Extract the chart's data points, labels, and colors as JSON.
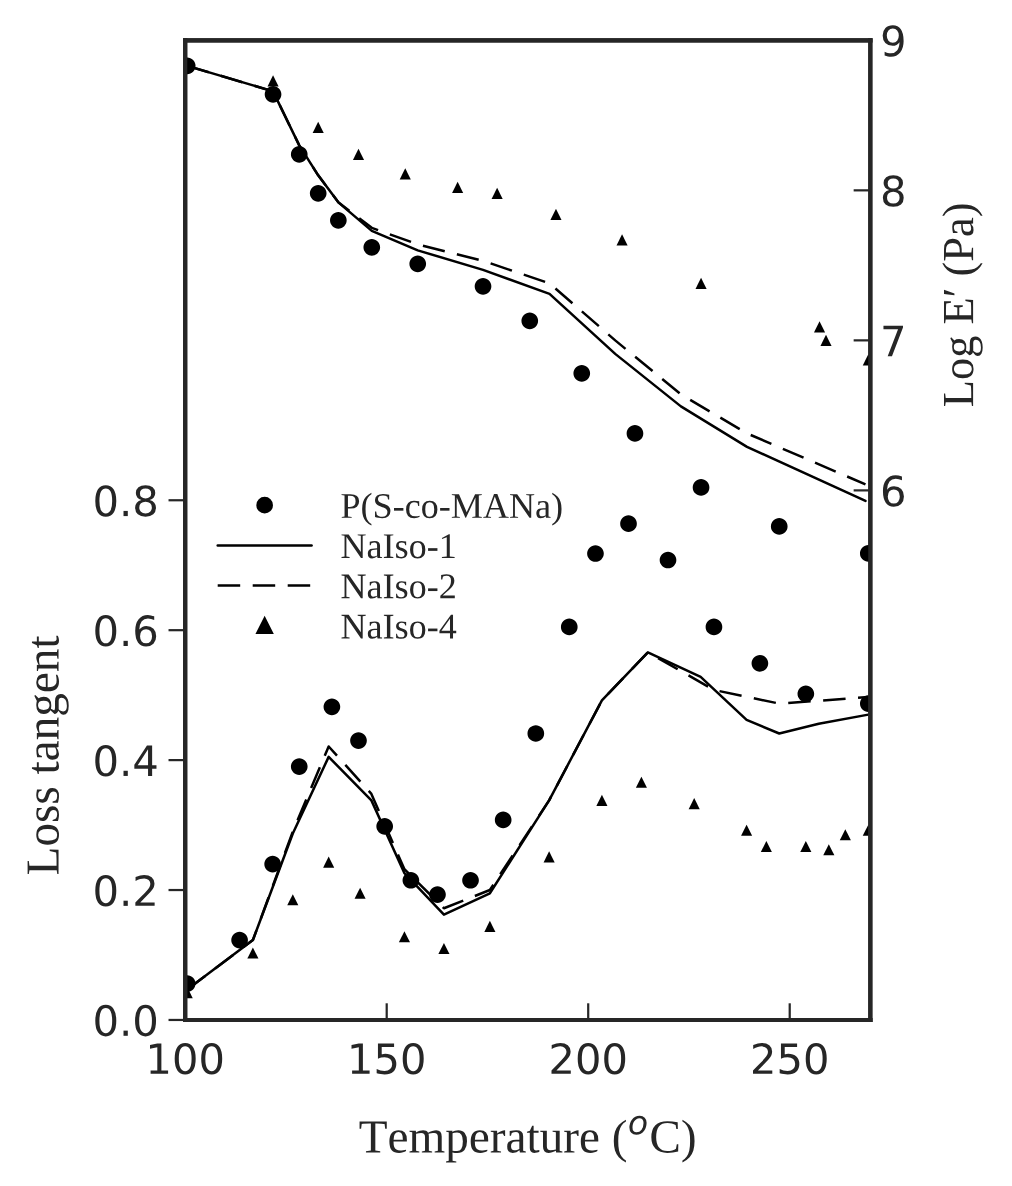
{
  "chart_data": {
    "type": "line",
    "xlabel": "Temperature ($^{o}$C)",
    "ylabel": "Loss tangent",
    "y2label": "Log E′ (Pa)",
    "xlim": [
      100,
      270
    ],
    "xticks": [
      100,
      150,
      200,
      250
    ],
    "ylim": [
      0,
      1.508
    ],
    "yticks": [
      {
        "value": 0,
        "label": "0.0"
      },
      {
        "value": 0.2,
        "label": "0.2"
      },
      {
        "value": 0.4,
        "label": "0.4"
      },
      {
        "value": 0.6,
        "label": "0.6"
      },
      {
        "value": 0.8,
        "label": "0.8"
      }
    ],
    "y2lim": [
      2.47,
      9
    ],
    "y2ticks": [
      6,
      7,
      8,
      9
    ],
    "grid": false,
    "legend": "center left",
    "series": [
      {
        "name": "P(S-co-MANa)",
        "type": "scatter",
        "marker": "circle",
        "color": "#000000",
        "x": [
          100.5,
          113.5,
          121.7,
          128.3,
          136.4,
          143,
          149.5,
          156,
          162.6,
          170.8,
          178.9,
          187,
          195.3,
          201.8,
          210,
          219.8,
          231.2,
          242.6,
          254,
          269.5
        ],
        "values": [
          0.056,
          0.123,
          0.24,
          0.39,
          0.482,
          0.43,
          0.298,
          0.215,
          0.193,
          0.215,
          0.308,
          0.441,
          0.605,
          0.718,
          0.764,
          0.708,
          0.605,
          0.549,
          0.502,
          0.487
        ]
      },
      {
        "name": "NaIso-1",
        "line_style": "solid",
        "marker": "none",
        "color": "#000000",
        "x": [
          100.5,
          116.8,
          126.7,
          135.6,
          146.2,
          154.4,
          164.2,
          175.6,
          190.3,
          203.4,
          214.8,
          227.9,
          239.3,
          247.4,
          257.2,
          269.5
        ],
        "values": [
          0.047,
          0.123,
          0.287,
          0.405,
          0.338,
          0.226,
          0.162,
          0.195,
          0.338,
          0.492,
          0.566,
          0.528,
          0.462,
          0.441,
          0.456,
          0.47
        ]
      },
      {
        "name": "NaIso-2",
        "line_style": "dashed",
        "marker": "none",
        "color": "#000000",
        "x": [
          100.5,
          116.8,
          126.7,
          135.6,
          146.2,
          154.4,
          164.2,
          175.6,
          190.3,
          203.4,
          214.8,
          231.2,
          247.4,
          269.5
        ],
        "values": [
          0.047,
          0.123,
          0.29,
          0.421,
          0.348,
          0.232,
          0.172,
          0.2,
          0.338,
          0.492,
          0.566,
          0.508,
          0.487,
          0.497
        ]
      },
      {
        "name": "NaIso-4",
        "type": "scatter",
        "marker": "triangle",
        "color": "#000000",
        "x": [
          100.5,
          116.8,
          126.7,
          135.6,
          143.4,
          154.4,
          164.2,
          175.6,
          190.3,
          203.4,
          213.2,
          226.3,
          239.3,
          244.2,
          254,
          259.7,
          263.8,
          269.5
        ],
        "values": [
          0.042,
          0.103,
          0.185,
          0.243,
          0.195,
          0.128,
          0.11,
          0.144,
          0.251,
          0.338,
          0.366,
          0.333,
          0.292,
          0.267,
          0.267,
          0.262,
          0.285,
          0.292
        ]
      },
      {
        "type": "scatter",
        "marker": "circle",
        "axis": "y2",
        "color": "#000000",
        "x": [
          100.5,
          121.8,
          128.3,
          133,
          138,
          146.3,
          157.7,
          173.9,
          185.5,
          198.4,
          211.6,
          228,
          247.4,
          269.5
        ],
        "values": [
          8.83,
          8.64,
          8.24,
          7.98,
          7.8,
          7.62,
          7.51,
          7.36,
          7.13,
          6.78,
          6.38,
          6.02,
          5.76,
          5.58
        ]
      },
      {
        "line_style": "solid",
        "marker": "none",
        "axis": "y2",
        "color": "#000000",
        "x": [
          100.5,
          121.8,
          128.3,
          133,
          138,
          146.3,
          157.7,
          173.9,
          190.4,
          206.7,
          223,
          239.4,
          268.8
        ],
        "values": [
          8.83,
          8.66,
          8.3,
          8.1,
          7.92,
          7.73,
          7.6,
          7.47,
          7.31,
          6.91,
          6.56,
          6.29,
          5.93
        ]
      },
      {
        "line_style": "dashed",
        "marker": "none",
        "axis": "y2",
        "color": "#000000",
        "x": [
          100.5,
          121.8,
          128.3,
          133,
          138,
          146.3,
          157.7,
          173.9,
          190.4,
          206.7,
          223,
          239.4,
          268.8
        ],
        "values": [
          8.83,
          8.66,
          8.3,
          8.1,
          7.92,
          7.75,
          7.64,
          7.53,
          7.38,
          7.0,
          6.64,
          6.38,
          6.04
        ]
      },
      {
        "type": "scatter",
        "marker": "triangle",
        "axis": "y2",
        "color": "#000000",
        "x": [
          121.8,
          133,
          143,
          154.6,
          167.6,
          177.4,
          192,
          208.4,
          228,
          257.4,
          259,
          269.5
        ],
        "values": [
          8.73,
          8.42,
          8.24,
          8.11,
          8.02,
          7.98,
          7.84,
          7.67,
          7.38,
          7.09,
          7.0,
          6.87
        ]
      }
    ]
  }
}
